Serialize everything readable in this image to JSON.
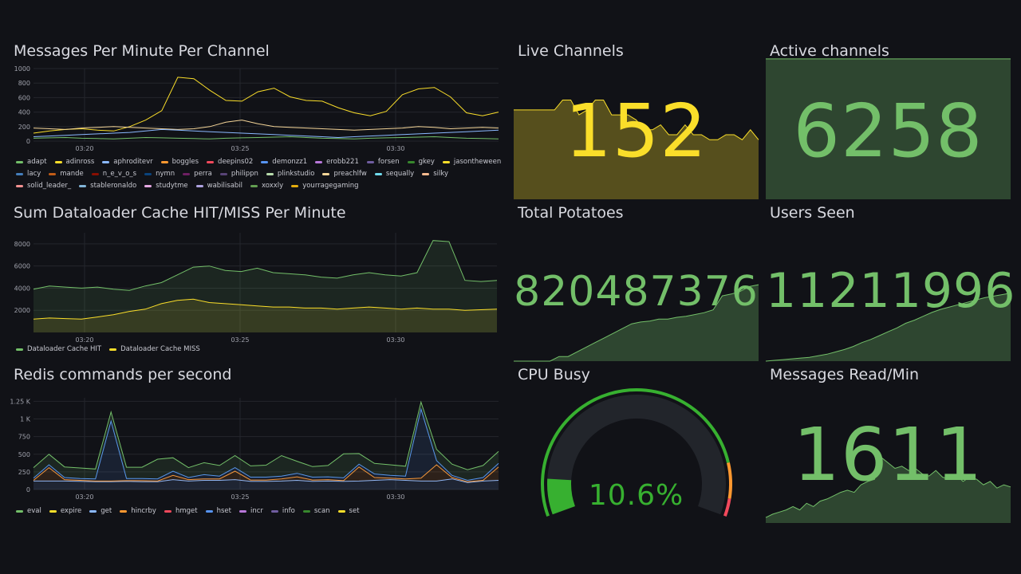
{
  "colors": {
    "green": "#73bf69",
    "yellow": "#fade2a",
    "orange": "#ff9830",
    "red": "#f2495c",
    "bg": "#111217"
  },
  "panels": {
    "messages": {
      "title": "Messages Per Minute Per Channel",
      "legend": [
        {
          "n": "adapt",
          "c": "#73bf69"
        },
        {
          "n": "adinross",
          "c": "#fade2a"
        },
        {
          "n": "aphroditevr",
          "c": "#8ab8ff"
        },
        {
          "n": "boggles",
          "c": "#ff9830"
        },
        {
          "n": "deepins02",
          "c": "#f2495c"
        },
        {
          "n": "demonzz1",
          "c": "#5794f2"
        },
        {
          "n": "erobb221",
          "c": "#b877d9"
        },
        {
          "n": "forsen",
          "c": "#705da0"
        },
        {
          "n": "gkey",
          "c": "#37872d"
        },
        {
          "n": "jasontheween",
          "c": "#fade2a"
        },
        {
          "n": "lacy",
          "c": "#447ebc"
        },
        {
          "n": "mande",
          "c": "#c15c17"
        },
        {
          "n": "n_e_v_o_s",
          "c": "#890f02"
        },
        {
          "n": "nymn",
          "c": "#0a437c"
        },
        {
          "n": "perra",
          "c": "#6d1f62"
        },
        {
          "n": "philippn",
          "c": "#584477"
        },
        {
          "n": "plinkstudio",
          "c": "#b7dbab"
        },
        {
          "n": "preachlfw",
          "c": "#f4d598"
        },
        {
          "n": "sequally",
          "c": "#70dbed"
        },
        {
          "n": "silky",
          "c": "#f9ba8f"
        },
        {
          "n": "solid_leader_",
          "c": "#f29191"
        },
        {
          "n": "stableronaldo",
          "c": "#82b5d8"
        },
        {
          "n": "studytme",
          "c": "#e5a8e2"
        },
        {
          "n": "wabilisabil",
          "c": "#aea2e0"
        },
        {
          "n": "xoxxly",
          "c": "#629e51"
        },
        {
          "n": "yourragegaming",
          "c": "#e5ac0e"
        }
      ]
    },
    "cache": {
      "title": "Sum Dataloader Cache HIT/MISS Per Minute",
      "legend": [
        {
          "n": "Dataloader Cache HIT",
          "c": "#73bf69"
        },
        {
          "n": "Dataloader Cache MISS",
          "c": "#fade2a"
        }
      ]
    },
    "redis": {
      "title": "Redis commands per second",
      "legend": [
        {
          "n": "eval",
          "c": "#73bf69"
        },
        {
          "n": "expire",
          "c": "#fade2a"
        },
        {
          "n": "get",
          "c": "#8ab8ff"
        },
        {
          "n": "hincrby",
          "c": "#ff9830"
        },
        {
          "n": "hmget",
          "c": "#f2495c"
        },
        {
          "n": "hset",
          "c": "#5794f2"
        },
        {
          "n": "incr",
          "c": "#b877d9"
        },
        {
          "n": "info",
          "c": "#705da0"
        },
        {
          "n": "scan",
          "c": "#37872d"
        },
        {
          "n": "set",
          "c": "#fade2a"
        }
      ]
    },
    "live": {
      "title": "Live Channels",
      "value": "152"
    },
    "active": {
      "title": "Active channels",
      "value": "6258"
    },
    "potatoes": {
      "title": "Total Potatoes",
      "value": "820487376"
    },
    "users": {
      "title": "Users Seen",
      "value": "11211996"
    },
    "cpu": {
      "title": "CPU Busy",
      "value": "10.6%",
      "percent": 10.6
    },
    "read": {
      "title": "Messages Read/Min",
      "value": "1611"
    }
  },
  "chart_data": [
    {
      "type": "line",
      "title": "Messages Per Minute Per Channel",
      "x_ticks": [
        "03:20",
        "03:25",
        "03:30"
      ],
      "y_ticks": [
        "0",
        "200",
        "400",
        "600",
        "800",
        "1000"
      ],
      "ylim": [
        0,
        1000
      ],
      "series": [
        {
          "name": "jasontheween",
          "values": [
            110,
            140,
            160,
            170,
            150,
            140,
            200,
            290,
            420,
            880,
            860,
            700,
            560,
            550,
            680,
            730,
            610,
            560,
            550,
            460,
            390,
            350,
            410,
            640,
            720,
            740,
            610,
            390,
            350,
            400
          ]
        },
        {
          "name": "adinross",
          "values": [
            180,
            170,
            160,
            180,
            190,
            200,
            190,
            180,
            170,
            160,
            170,
            200,
            260,
            290,
            240,
            200,
            190,
            180,
            170,
            160,
            150,
            160,
            170,
            180,
            200,
            190,
            170,
            180,
            190,
            180
          ]
        },
        {
          "name": "aphroditevr",
          "values": [
            60,
            70,
            80,
            90,
            100,
            110,
            120,
            140,
            160,
            150,
            140,
            130,
            120,
            110,
            100,
            90,
            80,
            70,
            60,
            50,
            60,
            70,
            80,
            90,
            100,
            110,
            120,
            130,
            140,
            150
          ]
        },
        {
          "name": "adapt",
          "values": [
            40,
            45,
            50,
            40,
            35,
            30,
            40,
            50,
            45,
            40,
            35,
            30,
            40,
            45,
            50,
            55,
            60,
            50,
            40,
            35,
            30,
            40,
            45,
            50,
            55,
            60,
            50,
            40,
            35,
            30
          ]
        }
      ]
    },
    {
      "type": "area",
      "title": "Sum Dataloader Cache HIT/MISS Per Minute",
      "x_ticks": [
        "03:20",
        "03:25",
        "03:30"
      ],
      "y_ticks": [
        "2000",
        "4000",
        "6000",
        "8000"
      ],
      "ylim": [
        0,
        9000
      ],
      "series": [
        {
          "name": "Dataloader Cache HIT",
          "values": [
            3900,
            4200,
            4100,
            4000,
            4100,
            3900,
            3800,
            4200,
            4500,
            5200,
            5900,
            6000,
            5600,
            5500,
            5800,
            5400,
            5300,
            5200,
            5000,
            4900,
            5200,
            5400,
            5200,
            5100,
            5400,
            8300,
            8200,
            4700,
            4600,
            4700
          ]
        },
        {
          "name": "Dataloader Cache MISS",
          "values": [
            1200,
            1300,
            1250,
            1200,
            1400,
            1600,
            1900,
            2100,
            2600,
            2900,
            3000,
            2700,
            2600,
            2500,
            2400,
            2300,
            2300,
            2200,
            2200,
            2100,
            2200,
            2300,
            2200,
            2100,
            2200,
            2100,
            2100,
            2000,
            2050,
            2100
          ]
        }
      ]
    },
    {
      "type": "area",
      "stacked": true,
      "title": "Redis commands per second",
      "x_ticks": [
        "03:20",
        "03:25",
        "03:30"
      ],
      "y_ticks": [
        "0",
        "250",
        "500",
        "750",
        "1 K",
        "1.25 K"
      ],
      "ylim": [
        0,
        1300
      ],
      "series": [
        {
          "name": "get",
          "values": [
            120,
            120,
            120,
            115,
            110,
            110,
            115,
            110,
            110,
            140,
            120,
            130,
            130,
            140,
            115,
            115,
            120,
            130,
            115,
            120,
            115,
            120,
            130,
            140,
            130,
            120,
            120,
            150,
            100,
            120,
            130
          ]
        },
        {
          "name": "hincrby",
          "values": [
            10,
            190,
            20,
            15,
            10,
            10,
            10,
            15,
            10,
            60,
            20,
            20,
            20,
            120,
            20,
            20,
            30,
            50,
            20,
            20,
            10,
            200,
            40,
            20,
            20,
            40,
            230,
            20,
            10,
            10,
            190
          ]
        },
        {
          "name": "hset",
          "values": [
            30,
            40,
            30,
            25,
            30,
            850,
            30,
            30,
            30,
            60,
            30,
            60,
            40,
            50,
            40,
            40,
            40,
            50,
            40,
            40,
            40,
            40,
            50,
            40,
            40,
            980,
            60,
            30,
            20,
            40,
            50
          ]
        },
        {
          "name": "scan",
          "values": [
            150,
            150,
            150,
            150,
            140,
            130,
            160,
            160,
            280,
            190,
            140,
            170,
            150,
            170,
            160,
            170,
            290,
            170,
            150,
            160,
            340,
            150,
            150,
            150,
            140,
            100,
            160,
            160,
            150,
            170,
            170
          ]
        }
      ]
    },
    {
      "type": "line",
      "title": "Live Channels sparkline",
      "values": [
        158,
        158,
        158,
        158,
        158,
        158,
        160,
        160,
        157,
        158,
        160,
        160,
        157,
        157,
        157,
        156,
        154,
        154,
        155,
        153,
        153,
        155,
        153,
        153,
        152,
        152,
        153,
        153,
        152,
        154,
        152
      ],
      "ylim": [
        140,
        162
      ]
    },
    {
      "type": "line",
      "title": "Active channels sparkline",
      "values": [
        6258,
        6258,
        6258,
        6258,
        6258,
        6258
      ],
      "ylim": [
        0,
        7000
      ]
    },
    {
      "type": "line",
      "title": "Total Potatoes sparkline",
      "values": [
        0,
        0,
        0,
        0,
        0,
        5,
        5,
        10,
        15,
        20,
        25,
        30,
        35,
        40,
        42,
        43,
        45,
        45,
        47,
        48,
        50,
        52,
        55,
        70,
        72,
        75,
        80,
        82
      ],
      "ylim": [
        0,
        100
      ]
    },
    {
      "type": "line",
      "title": "Users Seen sparkline",
      "values": [
        0,
        1,
        2,
        3,
        4,
        5,
        7,
        9,
        12,
        15,
        19,
        24,
        28,
        33,
        38,
        43,
        49,
        53,
        58,
        63,
        67,
        70,
        73,
        76,
        79,
        82,
        84,
        86,
        88
      ],
      "ylim": [
        0,
        100
      ]
    },
    {
      "type": "line",
      "title": "Messages Read/Min sparkline",
      "values": [
        5,
        8,
        10,
        12,
        15,
        12,
        18,
        15,
        20,
        22,
        25,
        28,
        30,
        28,
        35,
        38,
        40,
        60,
        55,
        50,
        52,
        48,
        50,
        45,
        43,
        48,
        42,
        40,
        44,
        38,
        42,
        40,
        35,
        38,
        32,
        35,
        33
      ],
      "ylim": [
        0,
        100
      ]
    }
  ]
}
